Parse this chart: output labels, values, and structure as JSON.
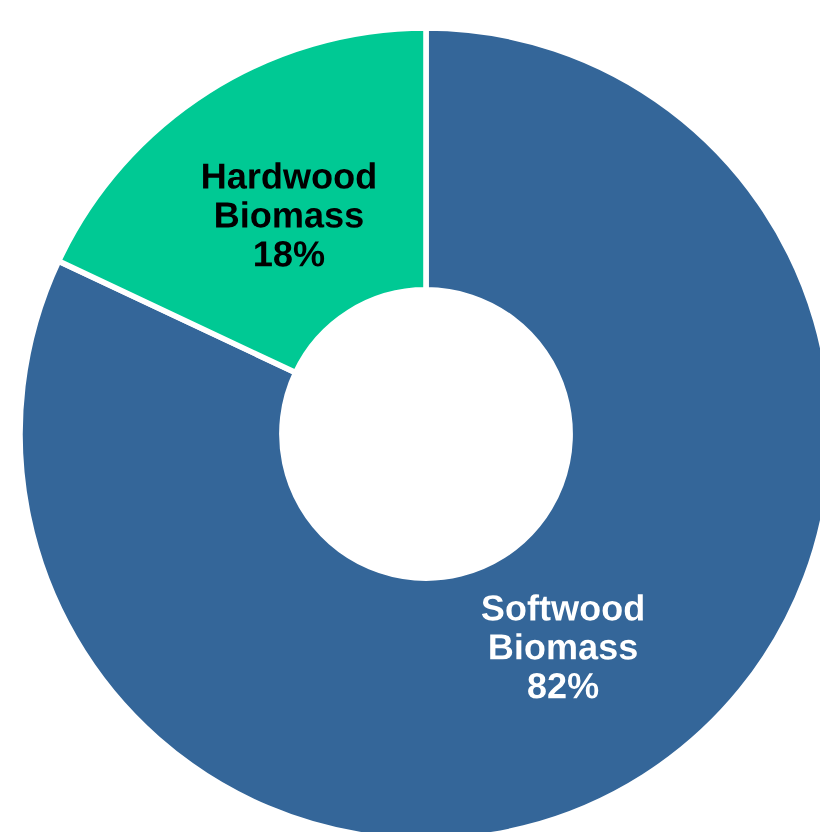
{
  "chart_data": {
    "type": "donut",
    "categories": [
      "Softwood Biomass",
      "Hardwood Biomass"
    ],
    "values": [
      82,
      18
    ],
    "colors": [
      "#346699",
      "#00c994"
    ],
    "value_labels": [
      "82%",
      "18%"
    ],
    "legend": false
  }
}
